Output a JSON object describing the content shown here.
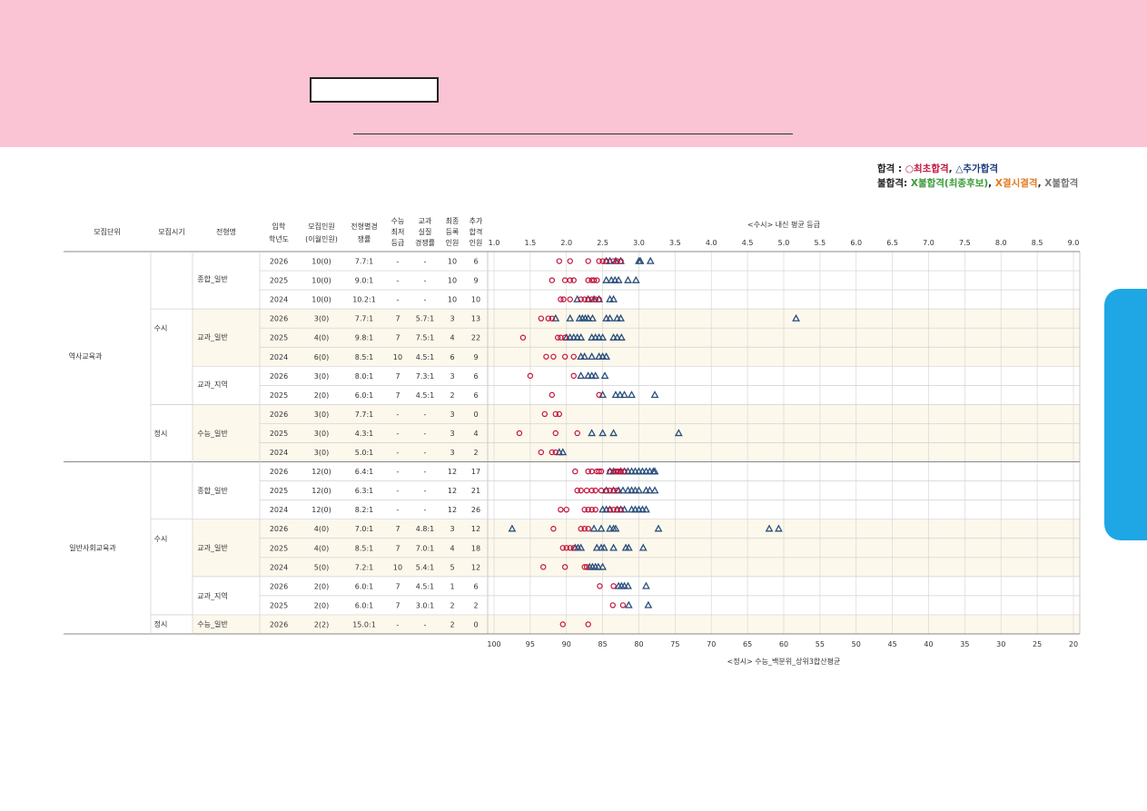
{
  "legend": {
    "pass_label": "합격",
    "pass_sep": " : ",
    "first_pass": "○최초합격",
    "comma1": ", ",
    "extra_pass": "△추가합격",
    "fail_label": "불합격:",
    "fail_final": " X불합격(최종후보)",
    "comma2": ", ",
    "fail_absent": "X결시결격",
    "comma3": ", ",
    "fail_plain": "X불합격"
  },
  "headers": {
    "unit": "모집단위",
    "period": "모집시기",
    "type": "전형명",
    "year": [
      "입학",
      "학년도"
    ],
    "quota": [
      "모집인원",
      "(이월인원)"
    ],
    "ratio": [
      "전형별경",
      "쟁률"
    ],
    "min": [
      "수능",
      "최저",
      "등급"
    ],
    "real": [
      "교과",
      "실질",
      "경쟁률"
    ],
    "reg": [
      "최종",
      "등록",
      "인원"
    ],
    "add": [
      "추가",
      "합격",
      "인원"
    ]
  },
  "groups": {
    "units": [
      "역사교육과",
      "일반사회교육과"
    ],
    "periods": [
      "수시",
      "정시",
      "수시",
      "정시"
    ],
    "types": [
      "종합_일반",
      "교과_일반",
      "교과_지역",
      "수능_일반",
      "종합_일반",
      "교과_일반",
      "교과_지역",
      "수능_일반"
    ]
  },
  "rows": [
    {
      "year": "2026",
      "quota": "10(0)",
      "ratio": "7.7:1",
      "min": "-",
      "real": "-",
      "reg": "10",
      "add": "6"
    },
    {
      "year": "2025",
      "quota": "10(0)",
      "ratio": "9.0:1",
      "min": "-",
      "real": "-",
      "reg": "10",
      "add": "9"
    },
    {
      "year": "2024",
      "quota": "10(0)",
      "ratio": "10.2:1",
      "min": "-",
      "real": "-",
      "reg": "10",
      "add": "10"
    },
    {
      "year": "2026",
      "quota": "3(0)",
      "ratio": "7.7:1",
      "min": "7",
      "real": "5.7:1",
      "reg": "3",
      "add": "13"
    },
    {
      "year": "2025",
      "quota": "4(0)",
      "ratio": "9.8:1",
      "min": "7",
      "real": "7.5:1",
      "reg": "4",
      "add": "22"
    },
    {
      "year": "2024",
      "quota": "6(0)",
      "ratio": "8.5:1",
      "min": "10",
      "real": "4.5:1",
      "reg": "6",
      "add": "9"
    },
    {
      "year": "2026",
      "quota": "3(0)",
      "ratio": "8.0:1",
      "min": "7",
      "real": "7.3:1",
      "reg": "3",
      "add": "6"
    },
    {
      "year": "2025",
      "quota": "2(0)",
      "ratio": "6.0:1",
      "min": "7",
      "real": "4.5:1",
      "reg": "2",
      "add": "6"
    },
    {
      "year": "2026",
      "quota": "3(0)",
      "ratio": "7.7:1",
      "min": "-",
      "real": "-",
      "reg": "3",
      "add": "0"
    },
    {
      "year": "2025",
      "quota": "3(0)",
      "ratio": "4.3:1",
      "min": "-",
      "real": "-",
      "reg": "3",
      "add": "4"
    },
    {
      "year": "2024",
      "quota": "3(0)",
      "ratio": "5.0:1",
      "min": "-",
      "real": "-",
      "reg": "3",
      "add": "2"
    },
    {
      "year": "2026",
      "quota": "12(0)",
      "ratio": "6.4:1",
      "min": "-",
      "real": "-",
      "reg": "12",
      "add": "17"
    },
    {
      "year": "2025",
      "quota": "12(0)",
      "ratio": "6.3:1",
      "min": "-",
      "real": "-",
      "reg": "12",
      "add": "21"
    },
    {
      "year": "2024",
      "quota": "12(0)",
      "ratio": "8.2:1",
      "min": "-",
      "real": "-",
      "reg": "12",
      "add": "26"
    },
    {
      "year": "2026",
      "quota": "4(0)",
      "ratio": "7.0:1",
      "min": "7",
      "real": "4.8:1",
      "reg": "3",
      "add": "12"
    },
    {
      "year": "2025",
      "quota": "4(0)",
      "ratio": "8.5:1",
      "min": "7",
      "real": "7.0:1",
      "reg": "4",
      "add": "18"
    },
    {
      "year": "2024",
      "quota": "5(0)",
      "ratio": "7.2:1",
      "min": "10",
      "real": "5.4:1",
      "reg": "5",
      "add": "12"
    },
    {
      "year": "2026",
      "quota": "2(0)",
      "ratio": "6.0:1",
      "min": "7",
      "real": "4.5:1",
      "reg": "1",
      "add": "6"
    },
    {
      "year": "2025",
      "quota": "2(0)",
      "ratio": "6.0:1",
      "min": "7",
      "real": "3.0:1",
      "reg": "2",
      "add": "2"
    },
    {
      "year": "2026",
      "quota": "2(2)",
      "ratio": "15.0:1",
      "min": "-",
      "real": "-",
      "reg": "2",
      "add": "0"
    }
  ],
  "chart_data": {
    "type": "scatter",
    "top_axis_title": "<수시> 내신 평균 등급",
    "top_ticks": [
      "1.0",
      "1.5",
      "2.0",
      "2.5",
      "3.0",
      "3.5",
      "4.0",
      "4.5",
      "5.0",
      "5.5",
      "6.0",
      "6.5",
      "7.0",
      "7.5",
      "8.0",
      "8.5",
      "9.0"
    ],
    "top_range": [
      1.0,
      9.0
    ],
    "bottom_axis_title": "<정시> 수능_백분위_상위3합산평균",
    "bottom_ticks": [
      "100",
      "95",
      "90",
      "85",
      "80",
      "75",
      "70",
      "65",
      "60",
      "55",
      "50",
      "45",
      "40",
      "35",
      "30",
      "25",
      "20"
    ],
    "bottom_range": [
      100,
      20
    ],
    "markers": {
      "first": "circle",
      "extra": "triangle"
    },
    "colors": {
      "first": "#c0143c",
      "extra": "#2a4f7c",
      "band": "#fdf8ec",
      "grid": "#d9d9d9"
    },
    "rows": [
      {
        "first": [
          1.9,
          2.05,
          2.3,
          2.45,
          2.5,
          2.55,
          2.65,
          2.7,
          2.75
        ],
        "extra": [
          2.55,
          2.6,
          2.68,
          2.75,
          3.0,
          3.02,
          3.16
        ]
      },
      {
        "first": [
          1.8,
          1.98,
          2.05,
          2.1,
          2.3,
          2.35,
          2.38,
          2.42
        ],
        "extra": [
          2.55,
          2.62,
          2.67,
          2.72,
          2.85,
          2.96
        ]
      },
      {
        "first": [
          1.92,
          1.96,
          2.05,
          2.2,
          2.25,
          2.3,
          2.35,
          2.4,
          2.45
        ],
        "extra": [
          2.15,
          2.3,
          2.38,
          2.45,
          2.6,
          2.65
        ]
      },
      {
        "first": [
          1.65,
          1.75,
          1.8
        ],
        "extra": [
          1.85,
          2.05,
          2.18,
          2.22,
          2.26,
          2.3,
          2.36,
          2.55,
          2.6,
          2.7,
          2.75,
          5.17
        ]
      },
      {
        "first": [
          1.4,
          1.88,
          1.92,
          1.98
        ],
        "extra": [
          2.0,
          2.05,
          2.1,
          2.15,
          2.2,
          2.35,
          2.4,
          2.45,
          2.5,
          2.65,
          2.7,
          2.76
        ]
      },
      {
        "first": [
          1.72,
          1.82,
          1.98,
          2.1
        ],
        "extra": [
          2.2,
          2.25,
          2.35,
          2.45,
          2.5,
          2.55
        ]
      },
      {
        "first": [
          1.5,
          2.1
        ],
        "extra": [
          2.2,
          2.3,
          2.35,
          2.4,
          2.53
        ]
      },
      {
        "first": [
          1.8,
          2.45
        ],
        "extra": [
          2.5,
          2.68,
          2.74,
          2.8,
          2.9,
          3.22
        ]
      },
      {
        "first": [
          93,
          91.5,
          91
        ],
        "extra": []
      },
      {
        "first": [
          96.5,
          91.5,
          88.5
        ],
        "extra": [
          86.5,
          85,
          83.5,
          74.5
        ]
      },
      {
        "first": [
          93.5,
          92,
          91.5
        ],
        "extra": [
          91,
          90.5
        ]
      },
      {
        "first": [
          2.12,
          2.3,
          2.35,
          2.42,
          2.45,
          2.48,
          2.6,
          2.68,
          2.7,
          2.72,
          2.75,
          2.8
        ],
        "extra": [
          2.6,
          2.65,
          2.75,
          2.8,
          2.85,
          2.9,
          2.95,
          3.0,
          3.05,
          3.1,
          3.15,
          3.2,
          3.22
        ]
      },
      {
        "first": [
          2.15,
          2.2,
          2.28,
          2.35,
          2.4,
          2.48,
          2.55,
          2.6,
          2.65,
          2.7
        ],
        "extra": [
          2.55,
          2.65,
          2.72,
          2.78,
          2.85,
          2.9,
          2.95,
          3.0,
          3.1,
          3.15,
          3.22
        ]
      },
      {
        "first": [
          1.92,
          2.0,
          2.25,
          2.3,
          2.35,
          2.4,
          2.6,
          2.65,
          2.7,
          2.75
        ],
        "extra": [
          2.5,
          2.55,
          2.6,
          2.7,
          2.75,
          2.8,
          2.9,
          2.95,
          3.0,
          3.05,
          3.1
        ]
      },
      {
        "first": [
          1.82,
          2.2,
          2.25,
          2.3
        ],
        "extra": [
          1.25,
          2.38,
          2.48,
          2.6,
          2.65,
          2.68,
          3.27,
          4.8,
          4.93
        ]
      },
      {
        "first": [
          1.95,
          2.0,
          2.05,
          2.1
        ],
        "extra": [
          2.12,
          2.16,
          2.2,
          2.42,
          2.48,
          2.52,
          2.65,
          2.82,
          2.86,
          3.06
        ]
      },
      {
        "first": [
          1.68,
          1.98,
          2.25,
          2.28
        ],
        "extra": [
          2.32,
          2.36,
          2.4,
          2.44,
          2.5
        ]
      },
      {
        "first": [
          2.46,
          2.65
        ],
        "extra": [
          2.72,
          2.76,
          2.8,
          2.85,
          3.1
        ]
      },
      {
        "first": [
          2.64,
          2.78
        ],
        "extra": [
          2.86,
          3.13
        ]
      },
      {
        "first": [
          90.5,
          87
        ],
        "extra": []
      }
    ]
  }
}
